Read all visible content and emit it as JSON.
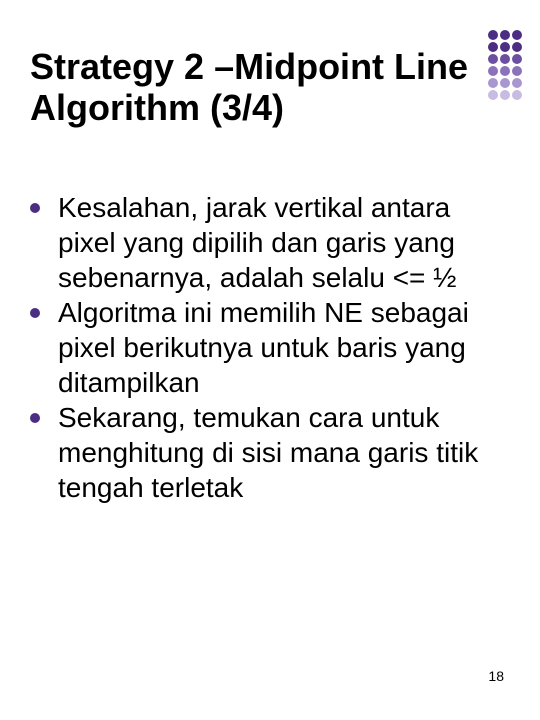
{
  "slide": {
    "title": "Strategy 2 –Midpoint Line Algorithm (3/4)",
    "title_color": "#000000",
    "title_fontsize": 36,
    "background_color": "#ffffff",
    "bullets": [
      "Kesalahan, jarak vertikal antara pixel yang dipilih dan garis yang sebenarnya, adalah selalu <= ½",
      " Algoritma ini memilih NE sebagai pixel berikutnya untuk baris yang ditampilkan",
      "Sekarang, temukan cara untuk menghitung di sisi mana garis titik tengah terletak"
    ],
    "bullet_color": "#4b2e83",
    "bullet_fontsize": 28,
    "page_number": "18",
    "deco": {
      "rows": 6,
      "cols": 3,
      "colors_by_row": [
        "#4b2e83",
        "#4b2e83",
        "#6b4fa0",
        "#8a73b8",
        "#a997cf",
        "#c8bce3"
      ],
      "dot_size": 10
    }
  }
}
